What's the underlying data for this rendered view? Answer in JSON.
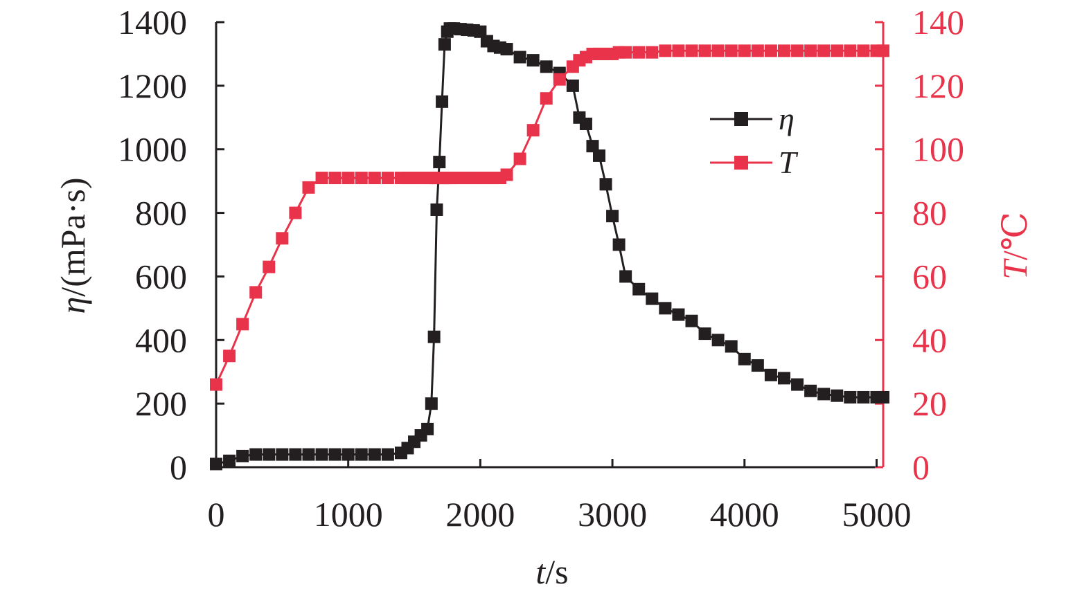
{
  "colors": {
    "eta": "#231f20",
    "temp": "#e8334a",
    "axis_left": "#231f20",
    "axis_right": "#e8334a",
    "axis_bottom": "#231f20"
  },
  "chart_data": {
    "type": "line",
    "x": [
      0,
      100,
      200,
      300,
      400,
      500,
      600,
      700,
      800,
      900,
      1000,
      1100,
      1200,
      1300,
      1400,
      1450,
      1500,
      1550,
      1600,
      1630,
      1650,
      1670,
      1690,
      1710,
      1730,
      1750,
      1770,
      1800,
      1850,
      1900,
      1950,
      2000,
      2050,
      2100,
      2150,
      2200,
      2300,
      2400,
      2500,
      2600,
      2700,
      2750,
      2800,
      2850,
      2900,
      2950,
      3000,
      3050,
      3100,
      3200,
      3300,
      3400,
      3500,
      3600,
      3700,
      3800,
      3900,
      4000,
      4100,
      4200,
      4300,
      4400,
      4500,
      4600,
      4700,
      4800,
      4900,
      5000,
      5050
    ],
    "series": [
      {
        "name": "η",
        "axis": "left",
        "values": [
          10,
          20,
          35,
          40,
          40,
          40,
          40,
          40,
          40,
          40,
          40,
          40,
          40,
          40,
          45,
          60,
          80,
          100,
          120,
          200,
          410,
          810,
          960,
          1150,
          1330,
          1370,
          1380,
          1380,
          1378,
          1376,
          1374,
          1370,
          1340,
          1325,
          1320,
          1315,
          1290,
          1280,
          1260,
          1240,
          1200,
          1100,
          1080,
          1010,
          980,
          890,
          790,
          700,
          600,
          560,
          530,
          500,
          480,
          460,
          420,
          400,
          380,
          340,
          320,
          290,
          280,
          260,
          240,
          230,
          225,
          220,
          220,
          220,
          220
        ]
      },
      {
        "name": "T",
        "axis": "right",
        "values": [
          26,
          35,
          45,
          55,
          63,
          72,
          80,
          88,
          91,
          91,
          91,
          91,
          91,
          91,
          91,
          91,
          91,
          91,
          91,
          91,
          91,
          91,
          91,
          91,
          91,
          91,
          91,
          91,
          91,
          91,
          91,
          91,
          91,
          91,
          91,
          92,
          97,
          106,
          116,
          122,
          126,
          128,
          129,
          130,
          130,
          130,
          130,
          130.5,
          130.5,
          130.5,
          130.5,
          131,
          131,
          131,
          131,
          131,
          131,
          131,
          131,
          131,
          131,
          131,
          131,
          131,
          131,
          131,
          131,
          131,
          131
        ]
      }
    ],
    "xlim": [
      0,
      5050
    ],
    "ylim_left": [
      0,
      1400
    ],
    "ylim_right": [
      0,
      140
    ],
    "x_ticks": [
      "0",
      "1000",
      "2000",
      "3000",
      "4000",
      "5000"
    ],
    "y_left_ticks": [
      "0",
      "200",
      "400",
      "600",
      "800",
      "1000",
      "1200",
      "1400"
    ],
    "y_right_ticks": [
      "0",
      "20",
      "40",
      "60",
      "80",
      "100",
      "120",
      "140"
    ],
    "x_tick_values": [
      0,
      1000,
      2000,
      3000,
      4000,
      5000
    ],
    "y_left_tick_values": [
      0,
      200,
      400,
      600,
      800,
      1000,
      1200,
      1400
    ],
    "y_right_tick_values": [
      0,
      20,
      40,
      60,
      80,
      100,
      120,
      140
    ],
    "xlabel": {
      "italic": "t",
      "rest": "/s"
    },
    "ylabel_left": {
      "italic": "η",
      "rest": "/(mPa·s)"
    },
    "ylabel_right": {
      "italic": "T",
      "rest": "/℃"
    },
    "legend_position": "upper-right",
    "grid": false
  }
}
